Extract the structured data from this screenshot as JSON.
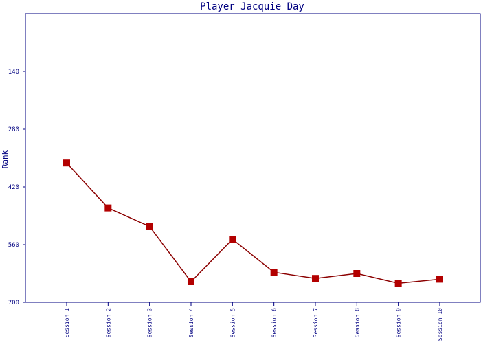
{
  "chart_data": {
    "type": "line",
    "title": "Player Jacquie Day",
    "xlabel": "",
    "ylabel": "Rank",
    "y_inverted": true,
    "ylim": [
      700,
      0
    ],
    "yticks": [
      140,
      280,
      420,
      560,
      700
    ],
    "categories": [
      "Session 1",
      "Session 2",
      "Session 3",
      "Session 4",
      "Session 5",
      "Session 6",
      "Session 7",
      "Session 8",
      "Session 9",
      "Session 10"
    ],
    "series": [
      {
        "values": [
          362,
          471,
          516,
          650,
          547,
          627,
          642,
          630,
          654,
          644
        ],
        "color": "#b30000",
        "line_color": "#8b0000",
        "marker": "square"
      }
    ],
    "grid": false,
    "colors": {
      "axis": "#000080",
      "text": "#000080"
    }
  }
}
